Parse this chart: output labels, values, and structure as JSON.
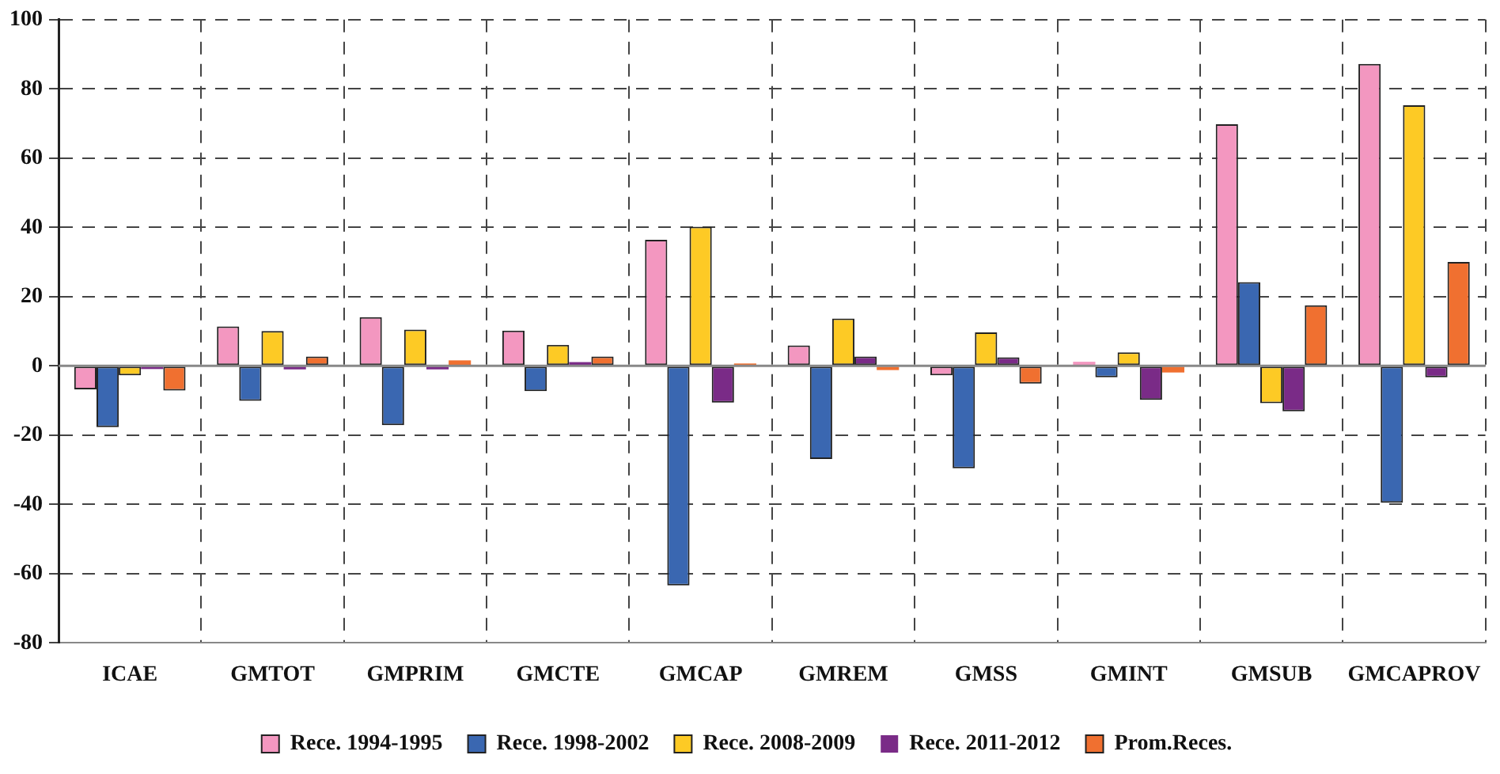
{
  "chart_data": {
    "type": "bar",
    "categories": [
      "ICAE",
      "GMTOT",
      "GMPRIM",
      "GMCTE",
      "GMCAP",
      "GMREM",
      "GMSS",
      "GMINT",
      "GMSUB",
      "GMCAPROV"
    ],
    "series": [
      {
        "name": "Rece. 1994-1995",
        "color": "#f397c0",
        "values": [
          -6.8,
          11.4,
          14.1,
          10.2,
          36.4,
          5.9,
          -2.7,
          1.2,
          69.8,
          87.2
        ]
      },
      {
        "name": "Rece. 1998-2002",
        "color": "#3a67b1",
        "values": [
          -17.7,
          -10.1,
          -17.1,
          -7.3,
          -63.4,
          -26.9,
          -29.6,
          -3.3,
          24.2,
          -39.5
        ]
      },
      {
        "name": "Rece. 2008-2009",
        "color": "#fdca25",
        "values": [
          -2.7,
          10.1,
          10.5,
          6.1,
          40.2,
          13.7,
          9.7,
          3.9,
          -10.8,
          75.3
        ]
      },
      {
        "name": "Rece. 2011-2012",
        "color": "#7a2b87",
        "values": [
          -0.9,
          -1,
          -1,
          1.1,
          -10.6,
          2.7,
          2.5,
          -9.8,
          -13.1,
          -3.3
        ]
      },
      {
        "name": "Prom.Reces.",
        "color": "#f07030",
        "values": [
          -7.1,
          2.7,
          1.6,
          2.7,
          0.7,
          -1.2,
          -5.1,
          -1.9,
          17.5,
          30
        ]
      }
    ],
    "ylim": [
      -80,
      100
    ],
    "yticks": [
      -80,
      -60,
      -40,
      -20,
      0,
      20,
      40,
      60,
      80,
      100
    ],
    "grid": true,
    "legend": "bottom"
  }
}
